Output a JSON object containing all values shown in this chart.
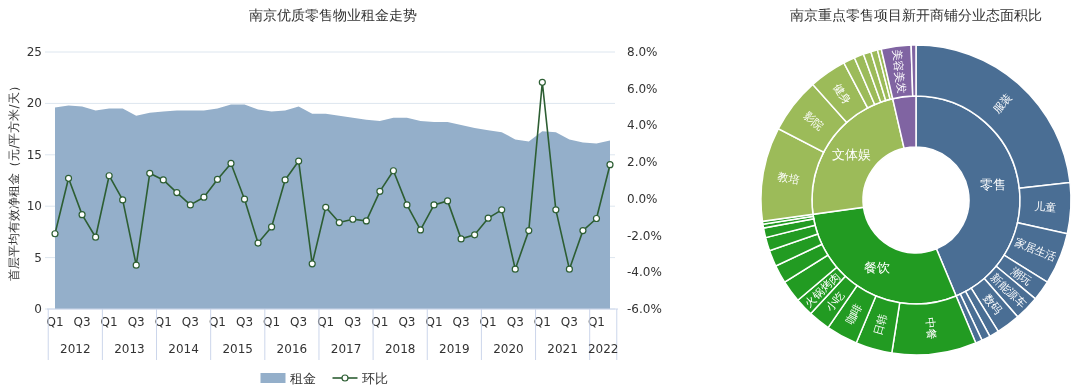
{
  "chart_data": [
    {
      "type": "area",
      "title": "南京优质零售物业租金走势",
      "ylabel": "首层平均有效净租金（元/平方米/天）",
      "categories": [
        "Q1",
        null,
        "Q3",
        null,
        "Q1",
        null,
        "Q3",
        null,
        "Q1",
        null,
        "Q3",
        null,
        "Q1",
        null,
        "Q3",
        null,
        "Q1",
        null,
        "Q3",
        null,
        "Q1",
        null,
        "Q3",
        null,
        "Q1",
        null,
        "Q3",
        null,
        "Q1",
        null,
        "Q3",
        null,
        "Q1",
        null,
        "Q3",
        null,
        "Q1",
        null,
        "Q3",
        null,
        "Q1",
        null
      ],
      "annotations": [
        "2012",
        "2013",
        "2014",
        "2015",
        "2016",
        "2017",
        "2018",
        "2019",
        "2020",
        "2021",
        "2022"
      ],
      "series": [
        {
          "name": "租金",
          "type": "area",
          "color": "#94afca",
          "values": [
            19.6,
            19.8,
            19.7,
            19.3,
            19.5,
            19.5,
            18.8,
            19.1,
            19.2,
            19.3,
            19.3,
            19.3,
            19.5,
            19.9,
            19.9,
            19.4,
            19.2,
            19.3,
            19.7,
            19.0,
            19.0,
            18.8,
            18.6,
            18.4,
            18.3,
            18.6,
            18.6,
            18.3,
            18.2,
            18.2,
            17.9,
            17.6,
            17.4,
            17.2,
            16.5,
            16.3,
            17.3,
            17.2,
            16.5,
            16.2,
            16.1,
            16.4
          ]
        },
        {
          "name": "环比",
          "type": "line",
          "axis": "y2",
          "color": "#2d5e33",
          "marker": "circle",
          "values": [
            -1.9,
            1.12,
            -0.86,
            -2.09,
            1.26,
            -0.06,
            -3.61,
            1.39,
            1.03,
            0.34,
            -0.33,
            0.09,
            1.06,
            1.93,
            -0.02,
            -2.41,
            -1.53,
            1.03,
            2.06,
            -3.54,
            -0.46,
            -1.29,
            -1.11,
            -1.2,
            0.41,
            1.53,
            -0.33,
            -1.69,
            -0.33,
            -0.11,
            -2.18,
            -1.96,
            -1.05,
            -0.6,
            -3.83,
            -1.73,
            6.35,
            -0.6,
            -3.83,
            -1.73,
            -1.07,
            1.86
          ]
        }
      ],
      "ylim": [
        0,
        25
      ],
      "yticks": [
        0,
        5,
        10,
        15,
        20,
        25
      ],
      "y2lim": [
        -6,
        8
      ],
      "y2ticks": [
        {
          "value": -6,
          "label": "-6.0%"
        },
        {
          "value": -4,
          "label": "-4.0%"
        },
        {
          "value": -2,
          "label": "-2.0%"
        },
        {
          "value": 0,
          "label": "0.0%"
        },
        {
          "value": 2,
          "label": "2.0%"
        },
        {
          "value": 4,
          "label": "4.0%"
        },
        {
          "value": 6,
          "label": "6.0%"
        },
        {
          "value": 8,
          "label": "8.0%"
        }
      ],
      "grid": "y",
      "legend": "bottom"
    },
    {
      "type": "donut",
      "title": "南京重点零售项目新开商铺分业态面积比",
      "categories": [
        "零售",
        "餐饮",
        "文体娱",
        null
      ],
      "values": [
        43.7,
        29.1,
        23.6,
        3.6
      ],
      "colors": [
        "#4a6e94",
        "#229b22",
        "#9cbb59",
        "#8064a2"
      ]
    },
    {
      "type": "donut",
      "categories": [
        "服装",
        "儿童",
        "家居生活",
        "潮玩",
        "新能源车",
        "数码",
        null,
        null,
        null,
        "中餐",
        "日韩",
        "咖啡",
        "小吃",
        "火锅烤肉",
        null,
        null,
        null,
        null,
        null,
        null,
        null,
        "教培",
        "影院",
        "健身",
        null,
        null,
        null,
        null,
        null,
        "美容美发",
        null
      ],
      "values": [
        23.2,
        5.3,
        5.4,
        2.1,
        2.6,
        2.5,
        1.0,
        0.9,
        0.7,
        8.8,
        3.8,
        3.3,
        2.3,
        1.9,
        2.3,
        1.9,
        1.7,
        1.4,
        1.0,
        0.4,
        0.3,
        9.8,
        5.8,
        3.9,
        1.2,
        1.0,
        0.8,
        0.7,
        0.4,
        3.1,
        0.5
      ],
      "colors": [
        "#4a6e94",
        "#4a6e94",
        "#4a6e94",
        "#4a6e94",
        "#4a6e94",
        "#4a6e94",
        "#4a6e94",
        "#4a6e94",
        "#4a6e94",
        "#229b22",
        "#229b22",
        "#229b22",
        "#229b22",
        "#229b22",
        "#229b22",
        "#229b22",
        "#229b22",
        "#229b22",
        "#229b22",
        "#229b22",
        "#229b22",
        "#9cbb59",
        "#9cbb59",
        "#9cbb59",
        "#9cbb59",
        "#9cbb59",
        "#9cbb59",
        "#9cbb59",
        "#9cbb59",
        "#8064a2",
        "#8064a2"
      ]
    }
  ]
}
